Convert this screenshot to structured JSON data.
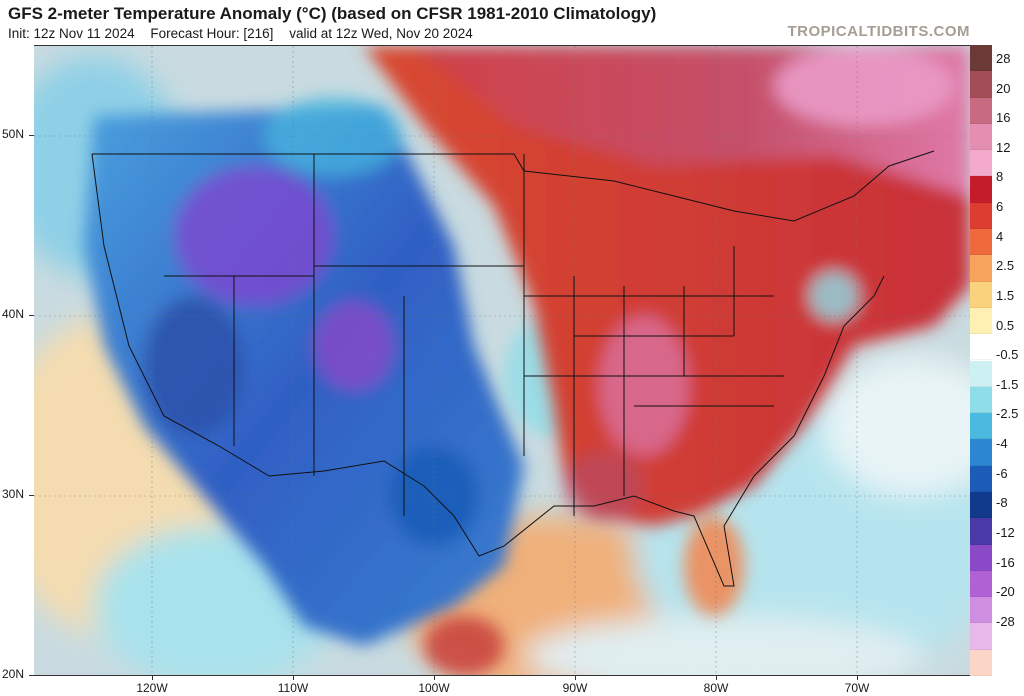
{
  "header": {
    "title": "GFS 2-meter Temperature Anomaly (°C) (based on CFSR 1981-2010 Climatology)",
    "init": "Init: 12z Nov 11 2024",
    "forecast_hour": "Forecast Hour: [216]",
    "valid": "valid at 12z Wed, Nov 20 2024",
    "brand": "TROPICALTIDBITS.COM"
  },
  "map": {
    "latitude_labels": [
      {
        "label": "50N",
        "lat": 50
      },
      {
        "label": "40N",
        "lat": 40
      },
      {
        "label": "30N",
        "lat": 30
      },
      {
        "label": "20N",
        "lat": 20
      }
    ],
    "longitude_labels": [
      {
        "label": "120W",
        "lon": -120
      },
      {
        "label": "110W",
        "lon": -110
      },
      {
        "label": "100W",
        "lon": -100
      },
      {
        "label": "90W",
        "lon": -90
      },
      {
        "label": "80W",
        "lon": -80
      },
      {
        "label": "70W",
        "lon": -70
      }
    ],
    "cold_color": "#3a68c8",
    "warm_color": "#c43a3a",
    "ocean_color": "#c9dbe0"
  },
  "colorbar": {
    "labels": [
      "28",
      "20",
      "16",
      "12",
      "8",
      "6",
      "4",
      "2.5",
      "1.5",
      "0.5",
      "-0.5",
      "-1.5",
      "-2.5",
      "-4",
      "-6",
      "-8",
      "-12",
      "-16",
      "-20",
      "-28"
    ],
    "colors": [
      "#6b3a36",
      "#a34d58",
      "#c86a82",
      "#e48fb2",
      "#f2a9cc",
      "#c51c2c",
      "#dc3d30",
      "#ee6a3d",
      "#f7a35b",
      "#fbd27c",
      "#fdf0b2",
      "#ffffff",
      "#cdf0f2",
      "#8fdde9",
      "#49b9e0",
      "#2c86d2",
      "#1c5cb8",
      "#11398c",
      "#4a3aa8",
      "#8a4ac8",
      "#b061d4",
      "#cf8fe0",
      "#e7b8ea",
      "#fbd6c6"
    ]
  }
}
